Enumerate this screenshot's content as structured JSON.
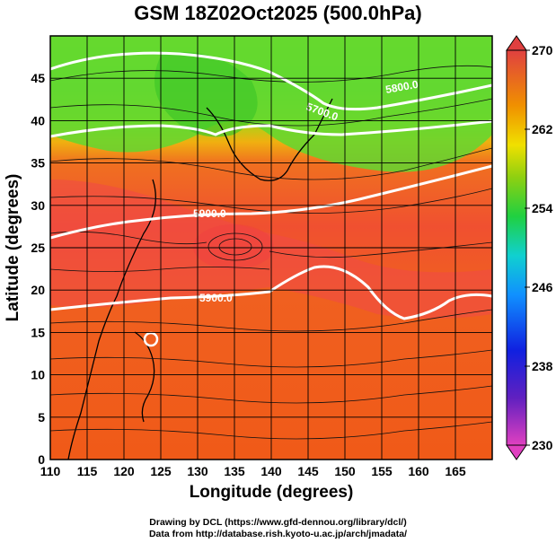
{
  "title": "GSM 18Z02Oct2025 (500.0hPa)",
  "map": {
    "xlabel": "Longitude (degrees)",
    "ylabel": "Latitude  (degrees)",
    "xlim": [
      110,
      170
    ],
    "ylim": [
      0,
      50
    ],
    "x_ticks": [
      "110",
      "115",
      "120",
      "125",
      "130",
      "135",
      "140",
      "145",
      "150",
      "155",
      "160",
      "165"
    ],
    "y_ticks": [
      "0",
      "5",
      "10",
      "15",
      "20",
      "25",
      "30",
      "35",
      "40",
      "45"
    ],
    "grid": true,
    "field": "temperature shading with wind streamlines",
    "contour_labels": [
      "5700.0",
      "5800.0",
      "5900.0",
      "5900.0"
    ]
  },
  "colorbar": {
    "ticks": [
      "230",
      "238",
      "246",
      "254",
      "262",
      "270"
    ],
    "min": 230,
    "max": 270,
    "extend": "both"
  },
  "credits": {
    "line1": "Drawing by DCL (https://www.gfd-dennou.org/library/dcl/)",
    "line2": "Data from http://database.rish.kyoto-u.ac.jp/arch/jmadata/"
  }
}
